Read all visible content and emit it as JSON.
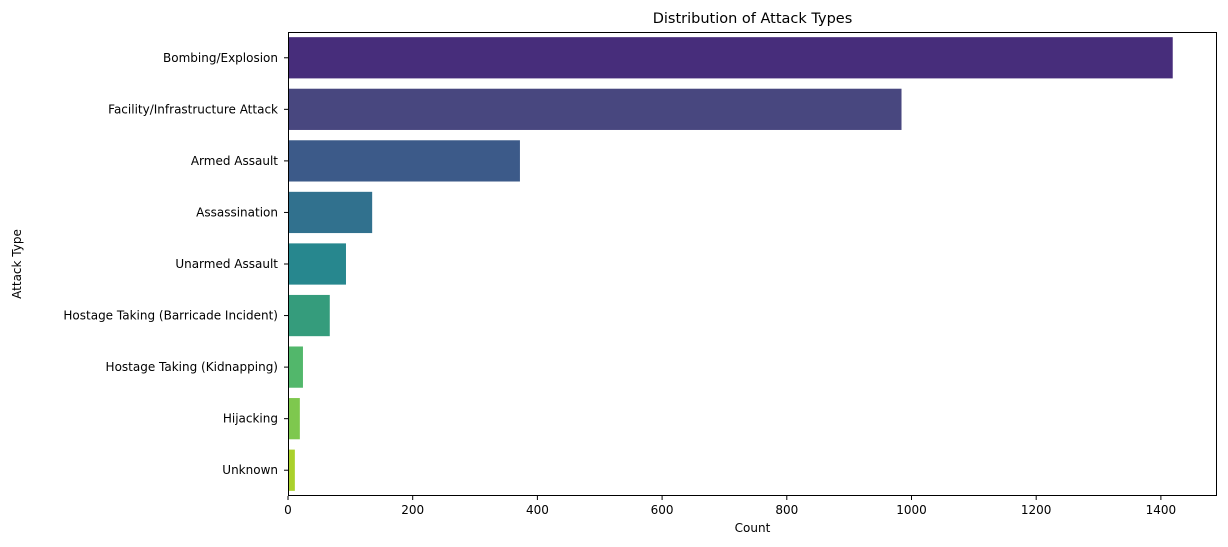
{
  "chart_data": {
    "type": "bar",
    "orientation": "horizontal",
    "title": "Distribution of Attack Types",
    "xlabel": "Count",
    "ylabel": "Attack Type",
    "xlim": [
      0,
      1490
    ],
    "xticks": [
      0,
      200,
      400,
      600,
      800,
      1000,
      1200,
      1400
    ],
    "grid": false,
    "categories": [
      "Bombing/Explosion",
      "Facility/Infrastructure Attack",
      "Armed Assault",
      "Assassination",
      "Unarmed Assault",
      "Hostage Taking (Barricade Incident)",
      "Hostage Taking (Kidnapping)",
      "Hijacking",
      "Unknown"
    ],
    "values": [
      1419,
      984,
      372,
      135,
      93,
      67,
      24,
      19,
      11
    ],
    "colors": [
      "#472d7b",
      "#48477f",
      "#3c5a89",
      "#31718e",
      "#27878e",
      "#359c7c",
      "#52b76b",
      "#7ec84e",
      "#aad12c"
    ]
  }
}
